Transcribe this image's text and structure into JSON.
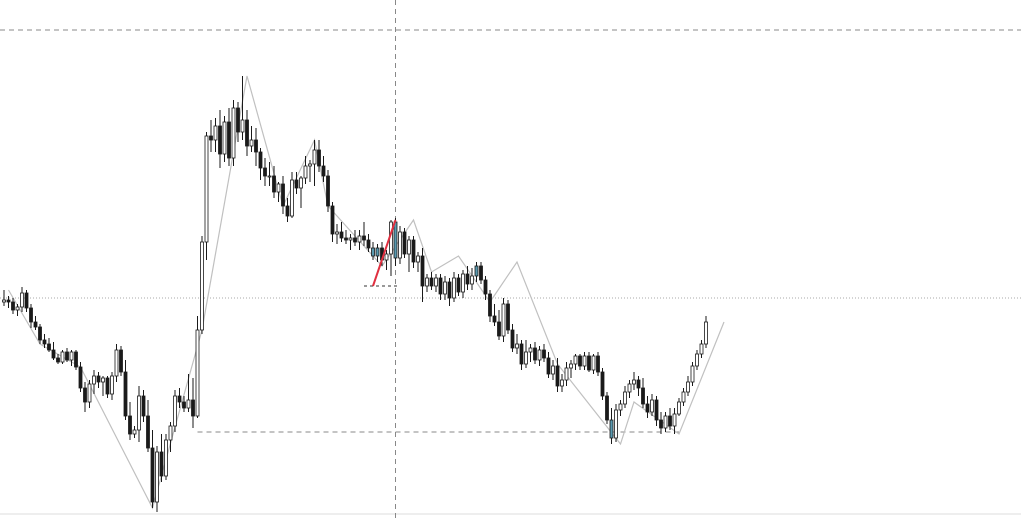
{
  "chart_data": {
    "type": "candlestick",
    "title": "",
    "xlabel": "",
    "ylabel": "",
    "ylim": [
      0,
      506
    ],
    "grid": false,
    "legend": "none",
    "colors": {
      "bull_fill": "#ffffff",
      "bear_fill": "#1a1a1a",
      "wick": "#1a1a1a",
      "highlight_fill": "#5a9ab0",
      "zigzag": "#c0c0c0",
      "trend_mark": "#e03040",
      "guide": "#888888",
      "price_line": "#aaaaaa"
    },
    "series": [
      {
        "o": 210,
        "h": 222,
        "l": 206,
        "c": 212
      },
      {
        "o": 212,
        "h": 216,
        "l": 204,
        "c": 210
      },
      {
        "o": 210,
        "h": 214,
        "l": 198,
        "c": 202
      },
      {
        "o": 202,
        "h": 208,
        "l": 196,
        "c": 205
      },
      {
        "o": 205,
        "h": 225,
        "l": 200,
        "c": 219
      },
      {
        "o": 219,
        "h": 222,
        "l": 200,
        "c": 204
      },
      {
        "o": 204,
        "h": 208,
        "l": 184,
        "c": 190
      },
      {
        "o": 190,
        "h": 196,
        "l": 182,
        "c": 185
      },
      {
        "o": 185,
        "h": 188,
        "l": 168,
        "c": 172
      },
      {
        "o": 172,
        "h": 178,
        "l": 164,
        "c": 168
      },
      {
        "o": 168,
        "h": 174,
        "l": 160,
        "c": 162
      },
      {
        "o": 162,
        "h": 170,
        "l": 152,
        "c": 154
      },
      {
        "o": 154,
        "h": 158,
        "l": 148,
        "c": 150
      },
      {
        "o": 150,
        "h": 162,
        "l": 148,
        "c": 160
      },
      {
        "o": 160,
        "h": 164,
        "l": 150,
        "c": 152
      },
      {
        "o": 152,
        "h": 162,
        "l": 146,
        "c": 160
      },
      {
        "o": 160,
        "h": 162,
        "l": 142,
        "c": 145
      },
      {
        "o": 145,
        "h": 150,
        "l": 120,
        "c": 124
      },
      {
        "o": 124,
        "h": 130,
        "l": 100,
        "c": 110
      },
      {
        "o": 110,
        "h": 132,
        "l": 104,
        "c": 128
      },
      {
        "o": 128,
        "h": 142,
        "l": 118,
        "c": 136
      },
      {
        "o": 136,
        "h": 140,
        "l": 124,
        "c": 130
      },
      {
        "o": 130,
        "h": 136,
        "l": 116,
        "c": 134
      },
      {
        "o": 134,
        "h": 136,
        "l": 114,
        "c": 118
      },
      {
        "o": 118,
        "h": 140,
        "l": 112,
        "c": 136
      },
      {
        "o": 136,
        "h": 168,
        "l": 130,
        "c": 162
      },
      {
        "o": 162,
        "h": 166,
        "l": 136,
        "c": 140
      },
      {
        "o": 140,
        "h": 152,
        "l": 92,
        "c": 96
      },
      {
        "o": 96,
        "h": 110,
        "l": 72,
        "c": 78
      },
      {
        "o": 78,
        "h": 86,
        "l": 74,
        "c": 82
      },
      {
        "o": 82,
        "h": 126,
        "l": 70,
        "c": 116
      },
      {
        "o": 116,
        "h": 122,
        "l": 90,
        "c": 96
      },
      {
        "o": 96,
        "h": 112,
        "l": 60,
        "c": 64
      },
      {
        "o": 64,
        "h": 82,
        "l": 4,
        "c": 10
      },
      {
        "o": 10,
        "h": 66,
        "l": 0,
        "c": 60
      },
      {
        "o": 60,
        "h": 78,
        "l": 30,
        "c": 36
      },
      {
        "o": 36,
        "h": 78,
        "l": 32,
        "c": 72
      },
      {
        "o": 72,
        "h": 90,
        "l": 60,
        "c": 86
      },
      {
        "o": 86,
        "h": 122,
        "l": 80,
        "c": 116
      },
      {
        "o": 116,
        "h": 124,
        "l": 104,
        "c": 110
      },
      {
        "o": 110,
        "h": 116,
        "l": 100,
        "c": 104
      },
      {
        "o": 104,
        "h": 138,
        "l": 100,
        "c": 112
      },
      {
        "o": 112,
        "h": 134,
        "l": 84,
        "c": 96
      },
      {
        "o": 96,
        "h": 196,
        "l": 94,
        "c": 182
      },
      {
        "o": 182,
        "h": 276,
        "l": 178,
        "c": 270
      },
      {
        "o": 270,
        "h": 380,
        "l": 252,
        "c": 376
      },
      {
        "o": 376,
        "h": 392,
        "l": 360,
        "c": 372
      },
      {
        "o": 372,
        "h": 394,
        "l": 360,
        "c": 386
      },
      {
        "o": 386,
        "h": 402,
        "l": 344,
        "c": 358
      },
      {
        "o": 358,
        "h": 396,
        "l": 350,
        "c": 390
      },
      {
        "o": 390,
        "h": 404,
        "l": 346,
        "c": 354
      },
      {
        "o": 354,
        "h": 412,
        "l": 346,
        "c": 404
      },
      {
        "o": 404,
        "h": 410,
        "l": 370,
        "c": 380
      },
      {
        "o": 380,
        "h": 436,
        "l": 372,
        "c": 392
      },
      {
        "o": 392,
        "h": 402,
        "l": 356,
        "c": 366
      },
      {
        "o": 366,
        "h": 386,
        "l": 360,
        "c": 372
      },
      {
        "o": 372,
        "h": 384,
        "l": 346,
        "c": 360
      },
      {
        "o": 360,
        "h": 364,
        "l": 332,
        "c": 344
      },
      {
        "o": 344,
        "h": 354,
        "l": 326,
        "c": 336
      },
      {
        "o": 336,
        "h": 350,
        "l": 326,
        "c": 336
      },
      {
        "o": 336,
        "h": 346,
        "l": 314,
        "c": 320
      },
      {
        "o": 320,
        "h": 330,
        "l": 310,
        "c": 328
      },
      {
        "o": 328,
        "h": 336,
        "l": 298,
        "c": 306
      },
      {
        "o": 306,
        "h": 314,
        "l": 290,
        "c": 296
      },
      {
        "o": 296,
        "h": 340,
        "l": 294,
        "c": 332
      },
      {
        "o": 332,
        "h": 340,
        "l": 318,
        "c": 324
      },
      {
        "o": 324,
        "h": 336,
        "l": 304,
        "c": 334
      },
      {
        "o": 334,
        "h": 356,
        "l": 328,
        "c": 346
      },
      {
        "o": 346,
        "h": 352,
        "l": 330,
        "c": 348
      },
      {
        "o": 348,
        "h": 372,
        "l": 326,
        "c": 362
      },
      {
        "o": 362,
        "h": 372,
        "l": 340,
        "c": 346
      },
      {
        "o": 346,
        "h": 356,
        "l": 330,
        "c": 336
      },
      {
        "o": 336,
        "h": 342,
        "l": 300,
        "c": 306
      },
      {
        "o": 306,
        "h": 310,
        "l": 270,
        "c": 278
      },
      {
        "o": 278,
        "h": 288,
        "l": 268,
        "c": 280
      },
      {
        "o": 280,
        "h": 290,
        "l": 270,
        "c": 274
      },
      {
        "o": 274,
        "h": 282,
        "l": 268,
        "c": 272
      },
      {
        "o": 272,
        "h": 278,
        "l": 262,
        "c": 274
      },
      {
        "o": 274,
        "h": 282,
        "l": 266,
        "c": 270
      },
      {
        "o": 270,
        "h": 282,
        "l": 262,
        "c": 276
      },
      {
        "o": 276,
        "h": 290,
        "l": 266,
        "c": 272
      },
      {
        "o": 272,
        "h": 278,
        "l": 260,
        "c": 264
      },
      {
        "o": 264,
        "h": 270,
        "l": 252,
        "c": 256,
        "hl": 1
      },
      {
        "o": 256,
        "h": 268,
        "l": 250,
        "c": 264,
        "hl": 1
      },
      {
        "o": 264,
        "h": 270,
        "l": 246,
        "c": 252
      },
      {
        "o": 252,
        "h": 262,
        "l": 242,
        "c": 258
      },
      {
        "o": 258,
        "h": 292,
        "l": 236,
        "c": 290
      },
      {
        "o": 290,
        "h": 294,
        "l": 246,
        "c": 254,
        "hl": 1
      },
      {
        "o": 254,
        "h": 286,
        "l": 248,
        "c": 280
      },
      {
        "o": 280,
        "h": 284,
        "l": 254,
        "c": 258
      },
      {
        "o": 258,
        "h": 276,
        "l": 240,
        "c": 272
      },
      {
        "o": 272,
        "h": 276,
        "l": 244,
        "c": 250
      },
      {
        "o": 250,
        "h": 260,
        "l": 240,
        "c": 256
      },
      {
        "o": 256,
        "h": 264,
        "l": 210,
        "c": 226
      },
      {
        "o": 226,
        "h": 238,
        "l": 220,
        "c": 234
      },
      {
        "o": 234,
        "h": 240,
        "l": 222,
        "c": 226
      },
      {
        "o": 226,
        "h": 238,
        "l": 220,
        "c": 234
      },
      {
        "o": 234,
        "h": 238,
        "l": 212,
        "c": 218
      },
      {
        "o": 218,
        "h": 236,
        "l": 212,
        "c": 230
      },
      {
        "o": 230,
        "h": 234,
        "l": 206,
        "c": 214
      },
      {
        "o": 214,
        "h": 240,
        "l": 210,
        "c": 234
      },
      {
        "o": 234,
        "h": 238,
        "l": 216,
        "c": 220
      },
      {
        "o": 220,
        "h": 242,
        "l": 214,
        "c": 238
      },
      {
        "o": 238,
        "h": 246,
        "l": 222,
        "c": 228
      },
      {
        "o": 228,
        "h": 244,
        "l": 222,
        "c": 236
      },
      {
        "o": 236,
        "h": 250,
        "l": 230,
        "c": 246,
        "hl": 1
      },
      {
        "o": 246,
        "h": 250,
        "l": 228,
        "c": 232
      },
      {
        "o": 232,
        "h": 236,
        "l": 212,
        "c": 218
      },
      {
        "o": 218,
        "h": 222,
        "l": 190,
        "c": 196
      },
      {
        "o": 196,
        "h": 208,
        "l": 186,
        "c": 190
      },
      {
        "o": 190,
        "h": 202,
        "l": 172,
        "c": 176
      },
      {
        "o": 176,
        "h": 214,
        "l": 170,
        "c": 208
      },
      {
        "o": 208,
        "h": 212,
        "l": 178,
        "c": 182
      },
      {
        "o": 182,
        "h": 188,
        "l": 160,
        "c": 164
      },
      {
        "o": 164,
        "h": 178,
        "l": 158,
        "c": 168
      },
      {
        "o": 168,
        "h": 172,
        "l": 142,
        "c": 148
      },
      {
        "o": 148,
        "h": 172,
        "l": 144,
        "c": 160
      },
      {
        "o": 160,
        "h": 168,
        "l": 150,
        "c": 164
      },
      {
        "o": 164,
        "h": 170,
        "l": 148,
        "c": 152
      },
      {
        "o": 152,
        "h": 166,
        "l": 146,
        "c": 162
      },
      {
        "o": 162,
        "h": 168,
        "l": 150,
        "c": 154
      },
      {
        "o": 154,
        "h": 160,
        "l": 134,
        "c": 138
      },
      {
        "o": 138,
        "h": 152,
        "l": 132,
        "c": 146
      },
      {
        "o": 146,
        "h": 154,
        "l": 120,
        "c": 126
      },
      {
        "o": 126,
        "h": 138,
        "l": 120,
        "c": 132
      },
      {
        "o": 132,
        "h": 150,
        "l": 126,
        "c": 144
      },
      {
        "o": 144,
        "h": 152,
        "l": 134,
        "c": 148
      },
      {
        "o": 148,
        "h": 158,
        "l": 142,
        "c": 156
      },
      {
        "o": 156,
        "h": 158,
        "l": 142,
        "c": 146
      },
      {
        "o": 146,
        "h": 160,
        "l": 142,
        "c": 156
      },
      {
        "o": 156,
        "h": 160,
        "l": 140,
        "c": 142
      },
      {
        "o": 142,
        "h": 158,
        "l": 138,
        "c": 156
      },
      {
        "o": 156,
        "h": 160,
        "l": 136,
        "c": 140
      },
      {
        "o": 140,
        "h": 144,
        "l": 112,
        "c": 116
      },
      {
        "o": 116,
        "h": 120,
        "l": 88,
        "c": 92
      },
      {
        "o": 92,
        "h": 104,
        "l": 68,
        "c": 74,
        "hl": 1
      },
      {
        "o": 74,
        "h": 108,
        "l": 70,
        "c": 102
      },
      {
        "o": 102,
        "h": 112,
        "l": 96,
        "c": 108
      },
      {
        "o": 108,
        "h": 126,
        "l": 104,
        "c": 120
      },
      {
        "o": 120,
        "h": 132,
        "l": 114,
        "c": 128
      },
      {
        "o": 128,
        "h": 140,
        "l": 122,
        "c": 132
      },
      {
        "o": 132,
        "h": 136,
        "l": 116,
        "c": 124
      },
      {
        "o": 124,
        "h": 134,
        "l": 104,
        "c": 108
      },
      {
        "o": 108,
        "h": 116,
        "l": 94,
        "c": 100
      },
      {
        "o": 100,
        "h": 118,
        "l": 96,
        "c": 112
      },
      {
        "o": 112,
        "h": 116,
        "l": 86,
        "c": 92
      },
      {
        "o": 92,
        "h": 100,
        "l": 78,
        "c": 84
      },
      {
        "o": 84,
        "h": 100,
        "l": 80,
        "c": 96
      },
      {
        "o": 96,
        "h": 104,
        "l": 82,
        "c": 86
      },
      {
        "o": 86,
        "h": 104,
        "l": 78,
        "c": 98
      },
      {
        "o": 98,
        "h": 114,
        "l": 96,
        "c": 110
      },
      {
        "o": 110,
        "h": 124,
        "l": 106,
        "c": 120
      },
      {
        "o": 120,
        "h": 136,
        "l": 116,
        "c": 130
      },
      {
        "o": 130,
        "h": 150,
        "l": 126,
        "c": 146
      },
      {
        "o": 146,
        "h": 162,
        "l": 142,
        "c": 158
      },
      {
        "o": 158,
        "h": 172,
        "l": 154,
        "c": 168
      },
      {
        "o": 168,
        "h": 196,
        "l": 164,
        "c": 190
      }
    ],
    "zigzag": [
      [
        1,
        222
      ],
      [
        8,
        168
      ],
      [
        17,
        145
      ],
      [
        33,
        4
      ],
      [
        44,
        182
      ],
      [
        54,
        436
      ],
      [
        62,
        306
      ],
      [
        69,
        372
      ],
      [
        72,
        306
      ],
      [
        84,
        246
      ],
      [
        91,
        292
      ],
      [
        95,
        240
      ],
      [
        101,
        256
      ],
      [
        108,
        210
      ],
      [
        114,
        250
      ],
      [
        123,
        148
      ],
      [
        137,
        68
      ],
      [
        140,
        110
      ],
      [
        150,
        78
      ],
      [
        160,
        190
      ]
    ],
    "levels": {
      "top": 482,
      "price": 214,
      "support": 80,
      "marker": 226
    },
    "trend_segment": [
      [
        82,
        226
      ],
      [
        87,
        292
      ]
    ],
    "crosshair_index": 87
  }
}
